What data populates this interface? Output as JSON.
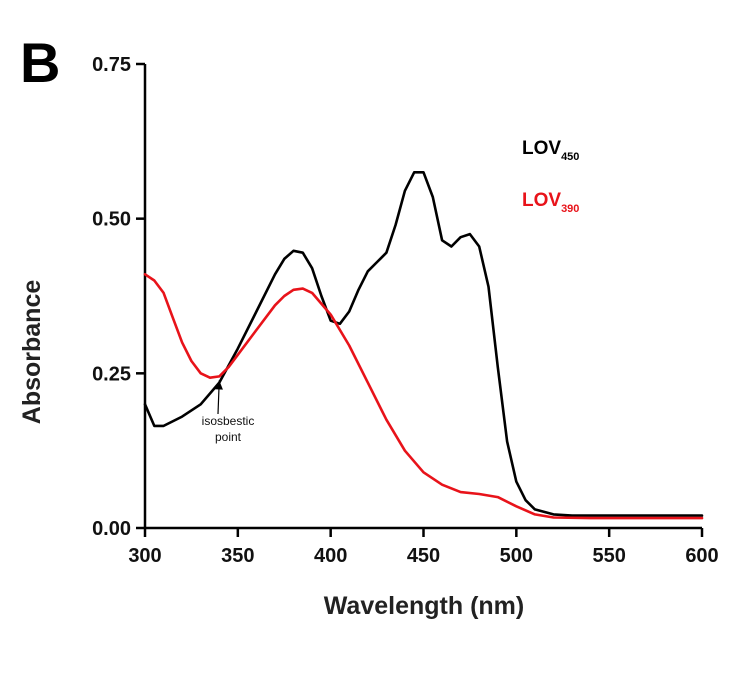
{
  "panel_label": "B",
  "chart_data": {
    "type": "line",
    "title": "",
    "xlabel": "Wavelength (nm)",
    "ylabel": "Absorbance",
    "xlim": [
      300,
      600
    ],
    "ylim": [
      0,
      0.75
    ],
    "xticks": [
      300,
      350,
      400,
      450,
      500,
      550,
      600
    ],
    "yticks": [
      0.0,
      0.25,
      0.5,
      0.75
    ],
    "xtick_labels": [
      "300",
      "350",
      "400",
      "450",
      "500",
      "550",
      "600"
    ],
    "ytick_labels": [
      "0.00",
      "0.25",
      "0.50",
      "0.75"
    ],
    "grid": false,
    "legend_position": "top-right",
    "series": [
      {
        "name": "LOV",
        "subscript": "450",
        "color": "#000000",
        "x": [
          300,
          305,
          310,
          320,
          330,
          340,
          350,
          360,
          370,
          375,
          380,
          385,
          390,
          395,
          400,
          405,
          410,
          415,
          420,
          425,
          430,
          435,
          440,
          445,
          450,
          455,
          460,
          465,
          470,
          475,
          480,
          485,
          490,
          495,
          500,
          505,
          510,
          520,
          530,
          540,
          560,
          580,
          600
        ],
        "y": [
          0.2,
          0.165,
          0.165,
          0.18,
          0.2,
          0.235,
          0.29,
          0.35,
          0.41,
          0.435,
          0.448,
          0.445,
          0.42,
          0.375,
          0.335,
          0.33,
          0.35,
          0.385,
          0.415,
          0.43,
          0.445,
          0.49,
          0.545,
          0.575,
          0.575,
          0.535,
          0.465,
          0.455,
          0.47,
          0.475,
          0.455,
          0.39,
          0.26,
          0.14,
          0.075,
          0.045,
          0.03,
          0.022,
          0.02,
          0.02,
          0.02,
          0.02,
          0.02
        ]
      },
      {
        "name": "LOV",
        "subscript": "390",
        "color": "#e8131a",
        "x": [
          300,
          305,
          310,
          315,
          320,
          325,
          330,
          335,
          340,
          345,
          350,
          360,
          370,
          375,
          380,
          385,
          390,
          400,
          410,
          420,
          430,
          440,
          450,
          460,
          470,
          480,
          490,
          500,
          510,
          520,
          540,
          560,
          580,
          600
        ],
        "y": [
          0.41,
          0.4,
          0.38,
          0.34,
          0.3,
          0.27,
          0.25,
          0.243,
          0.245,
          0.26,
          0.28,
          0.32,
          0.36,
          0.375,
          0.385,
          0.387,
          0.38,
          0.345,
          0.295,
          0.235,
          0.175,
          0.125,
          0.09,
          0.07,
          0.058,
          0.055,
          0.05,
          0.035,
          0.022,
          0.017,
          0.016,
          0.016,
          0.016,
          0.016
        ]
      }
    ],
    "annotations": [
      {
        "text": "isosbestic point",
        "line1": "isosbestic",
        "line2": "point",
        "x": 340,
        "y": 0.245
      }
    ]
  }
}
